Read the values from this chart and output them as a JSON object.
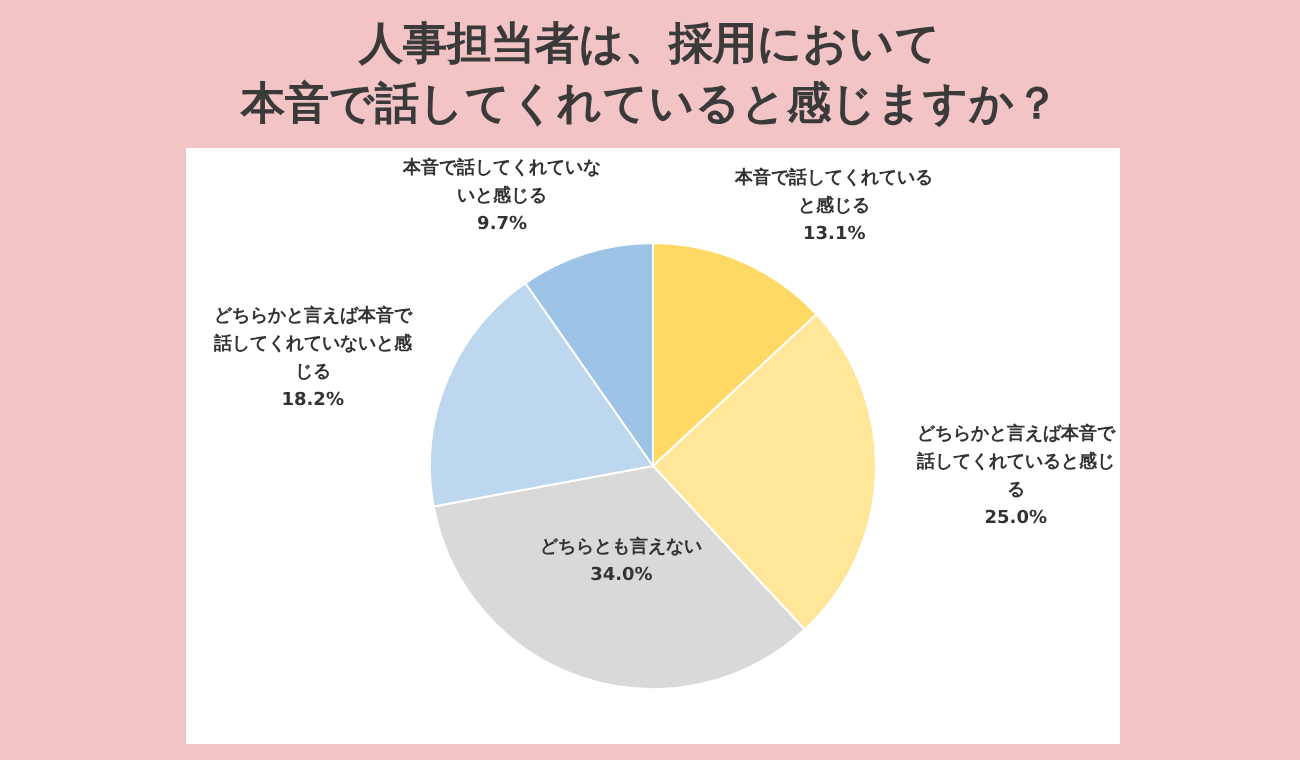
{
  "chart_data": {
    "type": "pie",
    "title": "人事担当者は、採用において",
    "subtitle": "本音で話してくれていると感じますか？",
    "categories": [
      "本音で話してくれていると感じる",
      "どちらかと言えば本音で話してくれていると感じる",
      "どちらとも言えない",
      "どちらかと言えば本音で話してくれていないと感じる",
      "本音で話してくれていないと感じる"
    ],
    "values": [
      13.1,
      25.0,
      34.0,
      18.2,
      9.7
    ],
    "colors": [
      "#ffd966",
      "#ffe699",
      "#d9d9d9",
      "#bdd7ee",
      "#9dc3e6"
    ],
    "value_labels": [
      "13.1%",
      "25.0%",
      "34.0%",
      "18.2%",
      "9.7%"
    ],
    "legend": false
  }
}
